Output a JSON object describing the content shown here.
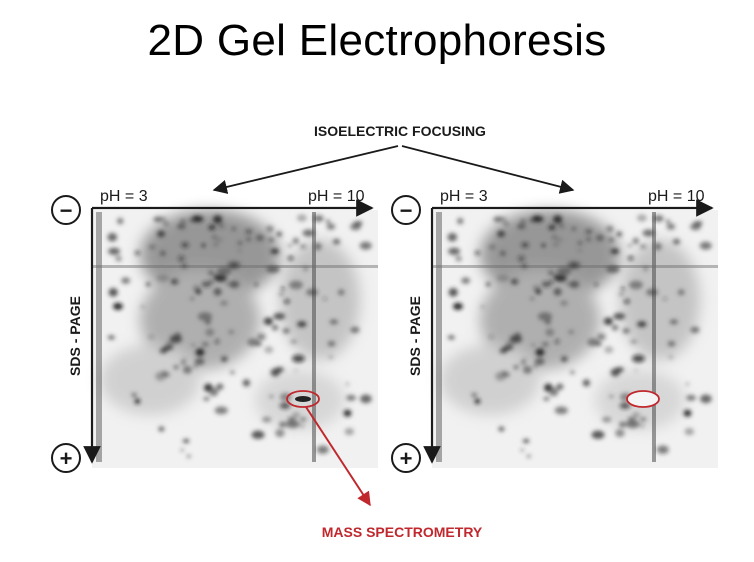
{
  "title": "2D Gel Electrophoresis",
  "top_label": "ISOELECTRIC FOCUSING",
  "bottom_label": "MASS SPECTROMETRY",
  "colors": {
    "text": "#000000",
    "accent": "#c0282d",
    "axis": "#1a1a1a"
  },
  "gels": [
    {
      "ph_left": "pH = 3",
      "ph_right": "pH = 10",
      "side_label": "SDS - PAGE",
      "minus": "−",
      "plus": "+"
    },
    {
      "ph_left": "pH = 3",
      "ph_right": "pH = 10",
      "side_label": "SDS - PAGE",
      "minus": "−",
      "plus": "+"
    }
  ],
  "icons": {
    "minus": "minus-circle-icon",
    "plus": "plus-circle-icon"
  }
}
